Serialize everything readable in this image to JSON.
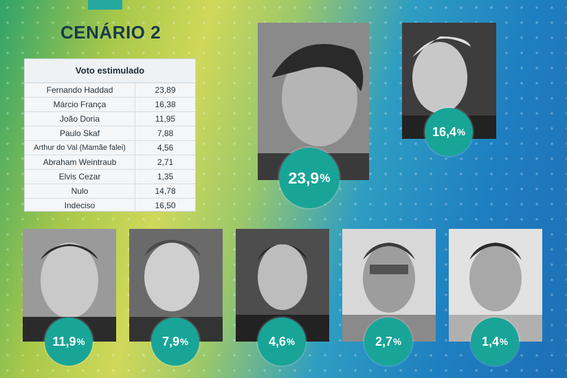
{
  "title": "CENÁRIO 2",
  "table": {
    "header": "Voto estimulado",
    "rows": [
      {
        "name": "Fernando Haddad",
        "value": "23,89"
      },
      {
        "name": "Márcio França",
        "value": "16,38"
      },
      {
        "name": "João Doria",
        "value": "11,95"
      },
      {
        "name": "Paulo Skaf",
        "value": "7,88"
      },
      {
        "name": "Arthur do Val (Mamãe falei)",
        "value": "4,56"
      },
      {
        "name": "Abraham Weintraub",
        "value": "2,71"
      },
      {
        "name": "Elvis Cezar",
        "value": "1,35"
      },
      {
        "name": "Nulo",
        "value": "14,78"
      },
      {
        "name": "Indeciso",
        "value": "16,50"
      }
    ]
  },
  "candidates": [
    {
      "percent": "23,9",
      "unit": "%"
    },
    {
      "percent": "16,4",
      "unit": "%"
    },
    {
      "percent": "11,9",
      "unit": "%"
    },
    {
      "percent": "7,9",
      "unit": "%"
    },
    {
      "percent": "4,6",
      "unit": "%"
    },
    {
      "percent": "2,7",
      "unit": "%"
    },
    {
      "percent": "1,4",
      "unit": "%"
    }
  ],
  "colors": {
    "badge": "#18a597",
    "title": "#1a3a4a"
  }
}
